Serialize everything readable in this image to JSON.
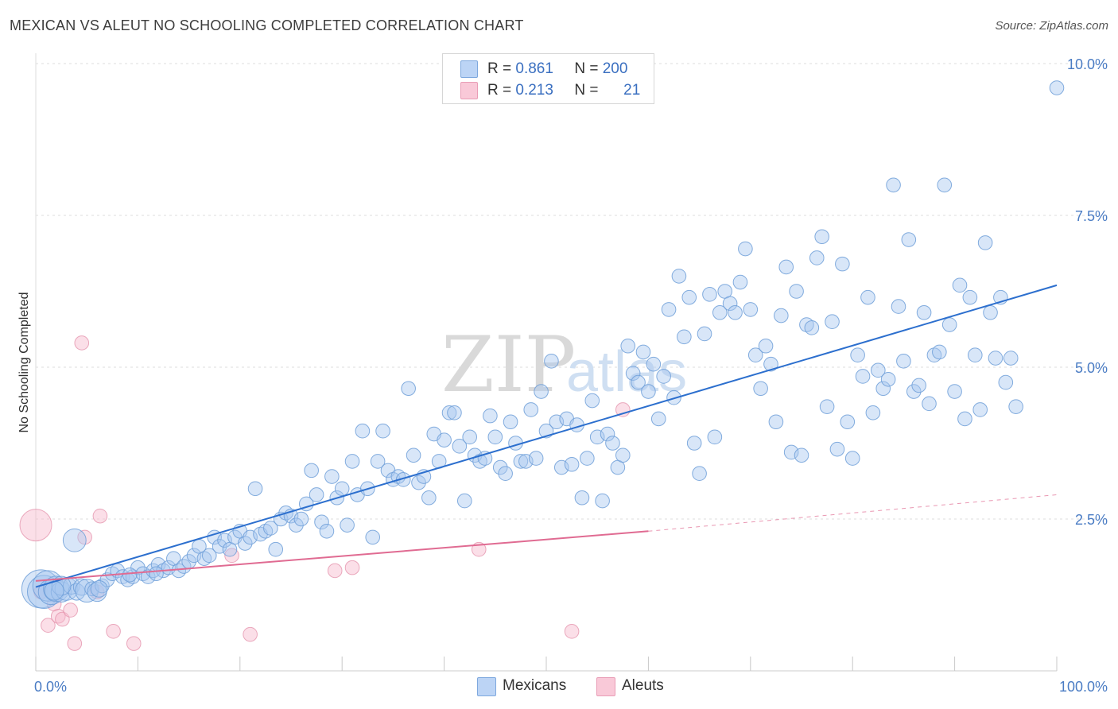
{
  "title": "MEXICAN VS ALEUT NO SCHOOLING COMPLETED CORRELATION CHART",
  "source": "Source: ZipAtlas.com",
  "watermark": {
    "zip": "ZIP",
    "atlas": "atlas"
  },
  "colors": {
    "blue_fill": "#a9c8f0",
    "blue_stroke": "#6e9fd8",
    "blue_line": "#2c6fce",
    "pink_fill": "#f6b9cc",
    "pink_stroke": "#e595ae",
    "pink_line": "#e06b92",
    "tick_label": "#4a7cc4",
    "grid": "#dddddd"
  },
  "legend": {
    "rows": [
      {
        "r_label": "R =",
        "r_value": "0.861",
        "n_label": "N =",
        "n_value": "200",
        "swatch": "blue"
      },
      {
        "r_label": "R =",
        "r_value": "0.213",
        "n_label": "N =",
        "n_value": "21",
        "swatch": "pink"
      }
    ]
  },
  "bottom_legend": [
    {
      "label": "Mexicans",
      "swatch": "blue"
    },
    {
      "label": "Aleuts",
      "swatch": "pink"
    }
  ],
  "chart_data": {
    "type": "scatter",
    "title": "MEXICAN VS ALEUT NO SCHOOLING COMPLETED CORRELATION CHART",
    "xlabel": "",
    "ylabel": "No Schooling Completed",
    "xlim": [
      0,
      100
    ],
    "ylim": [
      0,
      10.0
    ],
    "x_tick_labels": [
      "0.0%",
      "100.0%"
    ],
    "y_ticks": [
      2.5,
      5.0,
      7.5,
      10.0
    ],
    "y_tick_labels": [
      "2.5%",
      "5.0%",
      "7.5%",
      "10.0%"
    ],
    "grid": "horizontal dashed",
    "series": [
      {
        "name": "Mexicans",
        "color": "blue",
        "r": 0.861,
        "n": 200,
        "trend": {
          "x": [
            0,
            100
          ],
          "y": [
            1.38,
            6.35
          ],
          "dashed_after": null
        },
        "points": [
          [
            0.5,
            1.35,
            3
          ],
          [
            0.8,
            1.3,
            2.6
          ],
          [
            1.2,
            1.4,
            2.4
          ],
          [
            1.5,
            1.3,
            2
          ],
          [
            2,
            1.35,
            2
          ],
          [
            2.5,
            1.3,
            1.6
          ],
          [
            3,
            1.35,
            1.8
          ],
          [
            3.5,
            1.4,
            1.3
          ],
          [
            4,
            1.3,
            1.3
          ],
          [
            4.5,
            1.38,
            1.3
          ],
          [
            5,
            1.32,
            1.8
          ],
          [
            5.5,
            1.35,
            1.1
          ],
          [
            6,
            1.3,
            1.5
          ],
          [
            6.5,
            1.4,
            1.1
          ],
          [
            7,
            1.5,
            1.1
          ],
          [
            7.5,
            1.6,
            1.1
          ],
          [
            8,
            1.65,
            1.1
          ],
          [
            8.5,
            1.55,
            1.1
          ],
          [
            9,
            1.5,
            1.1
          ],
          [
            9.5,
            1.55,
            1.1
          ],
          [
            10,
            1.7,
            1.1
          ],
          [
            10.5,
            1.6,
            1.1
          ],
          [
            11,
            1.55,
            1.1
          ],
          [
            11.5,
            1.65,
            1.1
          ],
          [
            12,
            1.75,
            1.1
          ],
          [
            12.5,
            1.65,
            1.1
          ],
          [
            13,
            1.7,
            1.1
          ],
          [
            13.5,
            1.85,
            1.1
          ],
          [
            14,
            1.65,
            1.1
          ],
          [
            14.5,
            1.72,
            1.1
          ],
          [
            15,
            1.8,
            1.1
          ],
          [
            15.5,
            1.9,
            1.1
          ],
          [
            16,
            2.05,
            1.1
          ],
          [
            16.5,
            1.85,
            1.1
          ],
          [
            17,
            1.9,
            1.1
          ],
          [
            17.5,
            2.2,
            1.1
          ],
          [
            18,
            2.05,
            1.1
          ],
          [
            18.5,
            2.15,
            1.1
          ],
          [
            19,
            2.0,
            1.1
          ],
          [
            19.5,
            2.2,
            1.1
          ],
          [
            20,
            2.3,
            1.1
          ],
          [
            20.5,
            2.1,
            1.1
          ],
          [
            21,
            2.2,
            1.1
          ],
          [
            21.5,
            3.0,
            1.1
          ],
          [
            22,
            2.25,
            1.1
          ],
          [
            22.5,
            2.3,
            1.1
          ],
          [
            23,
            2.35,
            1.1
          ],
          [
            23.5,
            2.0,
            1.1
          ],
          [
            24,
            2.5,
            1.1
          ],
          [
            24.5,
            2.6,
            1.1
          ],
          [
            25,
            2.55,
            1.1
          ],
          [
            25.5,
            2.4,
            1.1
          ],
          [
            26,
            2.5,
            1.1
          ],
          [
            26.5,
            2.75,
            1.1
          ],
          [
            27,
            3.3,
            1.1
          ],
          [
            27.5,
            2.9,
            1.1
          ],
          [
            28,
            2.45,
            1.1
          ],
          [
            28.5,
            2.3,
            1.1
          ],
          [
            29,
            3.2,
            1.1
          ],
          [
            29.5,
            2.85,
            1.1
          ],
          [
            30,
            3.0,
            1.1
          ],
          [
            30.5,
            2.4,
            1.1
          ],
          [
            31,
            3.45,
            1.1
          ],
          [
            31.5,
            2.9,
            1.1
          ],
          [
            32,
            3.95,
            1.1
          ],
          [
            32.5,
            3.0,
            1.1
          ],
          [
            33,
            2.2,
            1.1
          ],
          [
            33.5,
            3.45,
            1.1
          ],
          [
            34,
            3.95,
            1.1
          ],
          [
            34.5,
            3.3,
            1.1
          ],
          [
            35,
            3.15,
            1.1
          ],
          [
            35.5,
            3.2,
            1.1
          ],
          [
            36,
            3.15,
            1.1
          ],
          [
            36.5,
            4.65,
            1.1
          ],
          [
            37,
            3.55,
            1.1
          ],
          [
            37.5,
            3.1,
            1.1
          ],
          [
            38,
            3.2,
            1.1
          ],
          [
            38.5,
            2.85,
            1.1
          ],
          [
            39,
            3.9,
            1.1
          ],
          [
            39.5,
            3.45,
            1.1
          ],
          [
            40,
            3.8,
            1.1
          ],
          [
            40.5,
            4.25,
            1.1
          ],
          [
            41,
            4.25,
            1.1
          ],
          [
            41.5,
            3.7,
            1.1
          ],
          [
            42,
            2.8,
            1.1
          ],
          [
            42.5,
            3.85,
            1.1
          ],
          [
            43,
            3.55,
            1.1
          ],
          [
            43.5,
            3.45,
            1.1
          ],
          [
            44,
            3.5,
            1.1
          ],
          [
            44.5,
            4.2,
            1.1
          ],
          [
            45,
            3.85,
            1.1
          ],
          [
            45.5,
            3.35,
            1.1
          ],
          [
            46,
            3.25,
            1.1
          ],
          [
            46.5,
            4.1,
            1.1
          ],
          [
            47,
            3.75,
            1.1
          ],
          [
            47.5,
            3.45,
            1.1
          ],
          [
            48,
            3.45,
            1.1
          ],
          [
            48.5,
            4.3,
            1.1
          ],
          [
            49,
            3.5,
            1.1
          ],
          [
            49.5,
            4.6,
            1.1
          ],
          [
            50,
            3.95,
            1.1
          ],
          [
            50.5,
            5.1,
            1.1
          ],
          [
            51,
            4.1,
            1.1
          ],
          [
            51.5,
            3.35,
            1.1
          ],
          [
            52,
            4.15,
            1.1
          ],
          [
            52.5,
            3.4,
            1.1
          ],
          [
            53,
            4.05,
            1.1
          ],
          [
            53.5,
            2.85,
            1.1
          ],
          [
            54,
            3.5,
            1.1
          ],
          [
            54.5,
            4.45,
            1.1
          ],
          [
            55,
            3.85,
            1.1
          ],
          [
            55.5,
            2.8,
            1.1
          ],
          [
            56,
            3.9,
            1.1
          ],
          [
            56.5,
            3.75,
            1.1
          ],
          [
            57,
            3.35,
            1.1
          ],
          [
            57.5,
            3.55,
            1.1
          ],
          [
            58,
            5.35,
            1.1
          ],
          [
            58.5,
            4.9,
            1.1
          ],
          [
            59,
            4.75,
            1.1
          ],
          [
            59.5,
            5.25,
            1.1
          ],
          [
            60,
            4.6,
            1.1
          ],
          [
            60.5,
            5.05,
            1.1
          ],
          [
            61,
            4.15,
            1.1
          ],
          [
            61.5,
            4.85,
            1.1
          ],
          [
            62,
            5.95,
            1.1
          ],
          [
            62.5,
            4.5,
            1.1
          ],
          [
            63,
            6.5,
            1.1
          ],
          [
            63.5,
            5.5,
            1.1
          ],
          [
            64,
            6.15,
            1.1
          ],
          [
            64.5,
            3.75,
            1.1
          ],
          [
            65,
            3.25,
            1.1
          ],
          [
            65.5,
            5.55,
            1.1
          ],
          [
            66,
            6.2,
            1.1
          ],
          [
            66.5,
            3.85,
            1.1
          ],
          [
            67,
            5.9,
            1.1
          ],
          [
            67.5,
            6.25,
            1.1
          ],
          [
            68,
            6.05,
            1.1
          ],
          [
            68.5,
            5.9,
            1.1
          ],
          [
            69,
            6.4,
            1.1
          ],
          [
            69.5,
            6.95,
            1.1
          ],
          [
            70,
            5.95,
            1.1
          ],
          [
            70.5,
            5.2,
            1.1
          ],
          [
            71,
            4.65,
            1.1
          ],
          [
            71.5,
            5.35,
            1.1
          ],
          [
            72,
            5.05,
            1.1
          ],
          [
            72.5,
            4.1,
            1.1
          ],
          [
            73,
            5.85,
            1.1
          ],
          [
            73.5,
            6.65,
            1.1
          ],
          [
            74,
            3.6,
            1.1
          ],
          [
            74.5,
            6.25,
            1.1
          ],
          [
            75,
            3.55,
            1.1
          ],
          [
            75.5,
            5.7,
            1.1
          ],
          [
            76,
            5.65,
            1.1
          ],
          [
            76.5,
            6.8,
            1.1
          ],
          [
            77,
            7.15,
            1.1
          ],
          [
            77.5,
            4.35,
            1.1
          ],
          [
            78,
            5.75,
            1.1
          ],
          [
            78.5,
            3.65,
            1.1
          ],
          [
            79,
            6.7,
            1.1
          ],
          [
            79.5,
            4.1,
            1.1
          ],
          [
            80,
            3.5,
            1.1
          ],
          [
            80.5,
            5.2,
            1.1
          ],
          [
            81,
            4.85,
            1.1
          ],
          [
            81.5,
            6.15,
            1.1
          ],
          [
            82,
            4.25,
            1.1
          ],
          [
            82.5,
            4.95,
            1.1
          ],
          [
            83,
            4.65,
            1.1
          ],
          [
            83.5,
            4.8,
            1.1
          ],
          [
            84,
            8.0,
            1.1
          ],
          [
            84.5,
            6.0,
            1.1
          ],
          [
            85,
            5.1,
            1.1
          ],
          [
            85.5,
            7.1,
            1.1
          ],
          [
            86,
            4.6,
            1.1
          ],
          [
            86.5,
            4.7,
            1.1
          ],
          [
            87,
            5.9,
            1.1
          ],
          [
            87.5,
            4.4,
            1.1
          ],
          [
            88,
            5.2,
            1.1
          ],
          [
            88.5,
            5.25,
            1.1
          ],
          [
            89,
            8.0,
            1.1
          ],
          [
            89.5,
            5.7,
            1.1
          ],
          [
            90,
            4.6,
            1.1
          ],
          [
            90.5,
            6.35,
            1.1
          ],
          [
            91,
            4.15,
            1.1
          ],
          [
            91.5,
            6.15,
            1.1
          ],
          [
            92,
            5.2,
            1.1
          ],
          [
            92.5,
            4.3,
            1.1
          ],
          [
            93,
            7.05,
            1.1
          ],
          [
            93.5,
            5.9,
            1.1
          ],
          [
            94,
            5.15,
            1.1
          ],
          [
            94.5,
            6.15,
            1.1
          ],
          [
            95,
            4.75,
            1.1
          ],
          [
            95.5,
            5.15,
            1.1
          ],
          [
            96,
            4.35,
            1.1
          ],
          [
            100,
            9.6,
            1.1
          ],
          [
            2.5,
            1.4,
            1.5
          ],
          [
            1.8,
            1.32,
            1.5
          ],
          [
            3.8,
            2.15,
            1.8
          ],
          [
            6.2,
            1.35,
            1.3
          ],
          [
            9.2,
            1.58,
            1.1
          ],
          [
            11.8,
            1.6,
            1.1
          ]
        ]
      },
      {
        "name": "Aleuts",
        "color": "pink",
        "r": 0.213,
        "n": 21,
        "trend": {
          "x": [
            0,
            60
          ],
          "y": [
            1.48,
            2.3
          ],
          "dashed_to": [
            100,
            2.9
          ]
        },
        "points": [
          [
            0,
            2.4,
            2.5
          ],
          [
            0.5,
            1.3,
            1.1
          ],
          [
            1.2,
            0.75,
            1.1
          ],
          [
            1.8,
            1.1,
            1.1
          ],
          [
            2.2,
            0.9,
            1.1
          ],
          [
            2.6,
            0.85,
            1.1
          ],
          [
            3.4,
            1.0,
            1.1
          ],
          [
            3.8,
            0.45,
            1.1
          ],
          [
            4.5,
            5.4,
            1.1
          ],
          [
            4.8,
            2.2,
            1.1
          ],
          [
            6,
            1.3,
            1.1
          ],
          [
            6.3,
            2.55,
            1.1
          ],
          [
            7.6,
            0.65,
            1.1
          ],
          [
            9.6,
            0.45,
            1.1
          ],
          [
            19.2,
            1.9,
            1.1
          ],
          [
            21,
            0.6,
            1.1
          ],
          [
            29.3,
            1.65,
            1.1
          ],
          [
            31,
            1.7,
            1.1
          ],
          [
            43.4,
            2.0,
            1.1
          ],
          [
            52.5,
            0.65,
            1.1
          ],
          [
            57.5,
            4.3,
            1.1
          ]
        ]
      }
    ]
  }
}
